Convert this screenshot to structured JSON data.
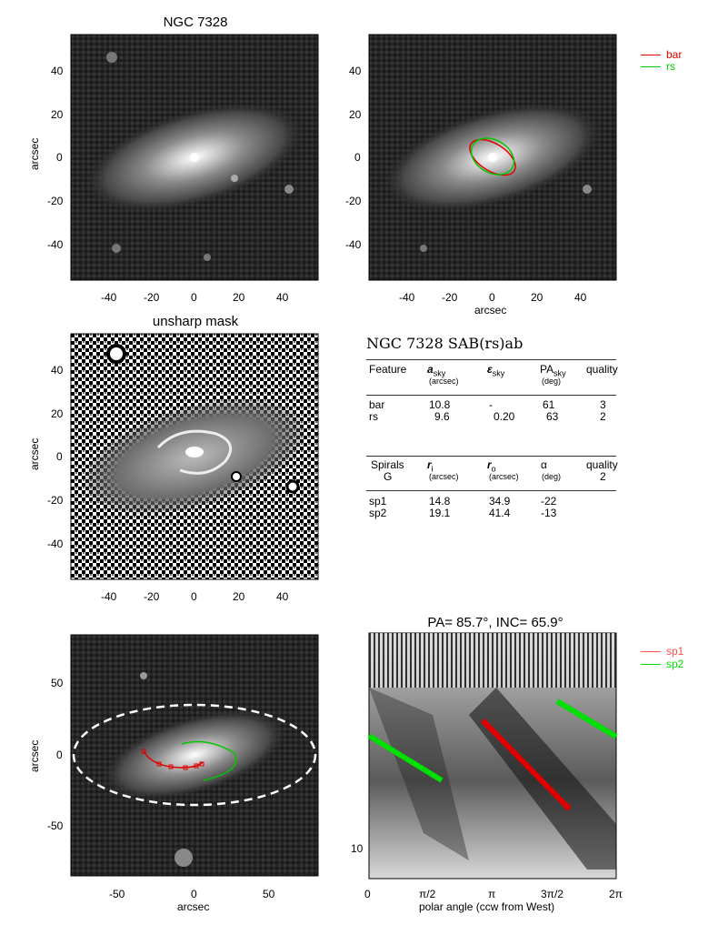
{
  "galaxy": "NGC 7328",
  "panels": {
    "image": {
      "title": "NGC 7328",
      "xticks": [
        "-40",
        "-20",
        "0",
        "20",
        "40"
      ],
      "yticks": [
        "40",
        "20",
        "0",
        "-20",
        "-40"
      ],
      "ylabel": "arcsec"
    },
    "fit": {
      "xticks": [
        "-40",
        "-20",
        "0",
        "20",
        "40"
      ],
      "yticks": [
        "40",
        "20",
        "0",
        "-20",
        "-40"
      ],
      "xlabel": "arcsec",
      "legend": [
        {
          "label": "bar",
          "color": "#e00000"
        },
        {
          "label": "rs",
          "color": "#00c800"
        }
      ]
    },
    "unsharp": {
      "title": "unsharp mask",
      "xticks": [
        "-40",
        "-20",
        "0",
        "20",
        "40"
      ],
      "yticks": [
        "40",
        "20",
        "0",
        "-20",
        "-40"
      ],
      "ylabel": "arcsec"
    },
    "spiral_overlay": {
      "xticks": [
        "-50",
        "0",
        "50"
      ],
      "yticks": [
        "50",
        "0",
        "-50"
      ],
      "xlabel": "arcsec",
      "ylabel": "arcsec"
    },
    "polar": {
      "title": "PA=  85.7°, INC=  65.9°",
      "xticks": [
        "0",
        "π/2",
        "π",
        "3π/2",
        "2π"
      ],
      "yticks": [
        "10"
      ],
      "xlabel": "polar angle (ccw from West)",
      "legend": [
        {
          "label": "sp1",
          "color": "#ff4d4d"
        },
        {
          "label": "sp2",
          "color": "#00e000"
        }
      ]
    }
  },
  "table": {
    "heading": "NGC 7328  SAB(rs)ab",
    "features": {
      "headers": [
        {
          "main": "Feature",
          "sub": ""
        },
        {
          "main": "a",
          "sub_main": "sky",
          "sub": "(arcsec)"
        },
        {
          "main": "ε",
          "sub_main": "sky",
          "sub": ""
        },
        {
          "main": "PA",
          "sub_main": "sky",
          "sub": "(deg)"
        },
        {
          "main": "quality",
          "sub": ""
        }
      ],
      "rows": [
        [
          "bar",
          "10.8",
          "-",
          "61",
          "3"
        ],
        [
          "rs",
          "9.6",
          "0.20",
          "63",
          "2"
        ]
      ]
    },
    "spirals": {
      "headers": [
        {
          "main": "Spirals",
          "sub": "G"
        },
        {
          "main": "r",
          "sub_main": "i",
          "sub": "(arcsec)"
        },
        {
          "main": "r",
          "sub_main": "o",
          "sub": "(arcsec)"
        },
        {
          "main": "α",
          "sub_main": "",
          "sub": "(deg)"
        },
        {
          "main": "quality",
          "sub": "2"
        }
      ],
      "rows": [
        [
          "sp1",
          "14.8",
          "34.9",
          "-22",
          ""
        ],
        [
          "sp2",
          "19.1",
          "41.4",
          "-13",
          ""
        ]
      ]
    }
  }
}
